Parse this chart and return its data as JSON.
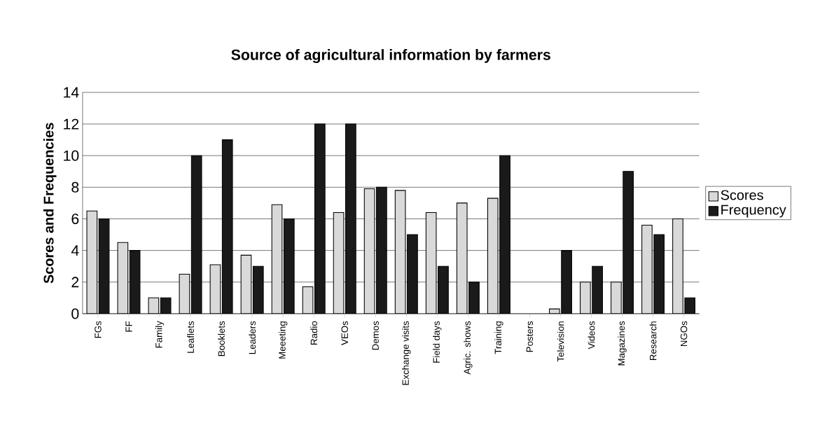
{
  "chart_data": {
    "type": "bar",
    "title": "Source of agricultural information by farmers",
    "ylabel": "Scores and Frequencies",
    "categories": [
      "FGs",
      "FF",
      "Family",
      "Leaflets",
      "Booklets",
      "Leaders",
      "Meeeting",
      "Radio",
      "VEOs",
      "Demos",
      "Exchange visits",
      "Field days",
      "Agric. shows",
      "Training",
      "Posters",
      "Television",
      "Videos",
      "Magazines",
      "Research",
      "NGOs"
    ],
    "series": [
      {
        "name": "Scores",
        "color": "#d9d9d9",
        "values": [
          6.5,
          4.5,
          1,
          2.5,
          3.1,
          3.7,
          6.9,
          1.7,
          6.4,
          7.9,
          7.8,
          6.4,
          7.0,
          7.3,
          null,
          0.3,
          2.0,
          2.0,
          5.6,
          6.0
        ]
      },
      {
        "name": "Frequency",
        "color": "#1a1a1a",
        "values": [
          6,
          4,
          1,
          10,
          11,
          3,
          6,
          12,
          12,
          8,
          5,
          3,
          2,
          10,
          null,
          4,
          3,
          9,
          5,
          1
        ]
      }
    ],
    "ylim": [
      0,
      14
    ],
    "yticks": [
      0,
      2,
      4,
      6,
      8,
      10,
      12,
      14
    ],
    "grid": "y",
    "legend": "right"
  }
}
